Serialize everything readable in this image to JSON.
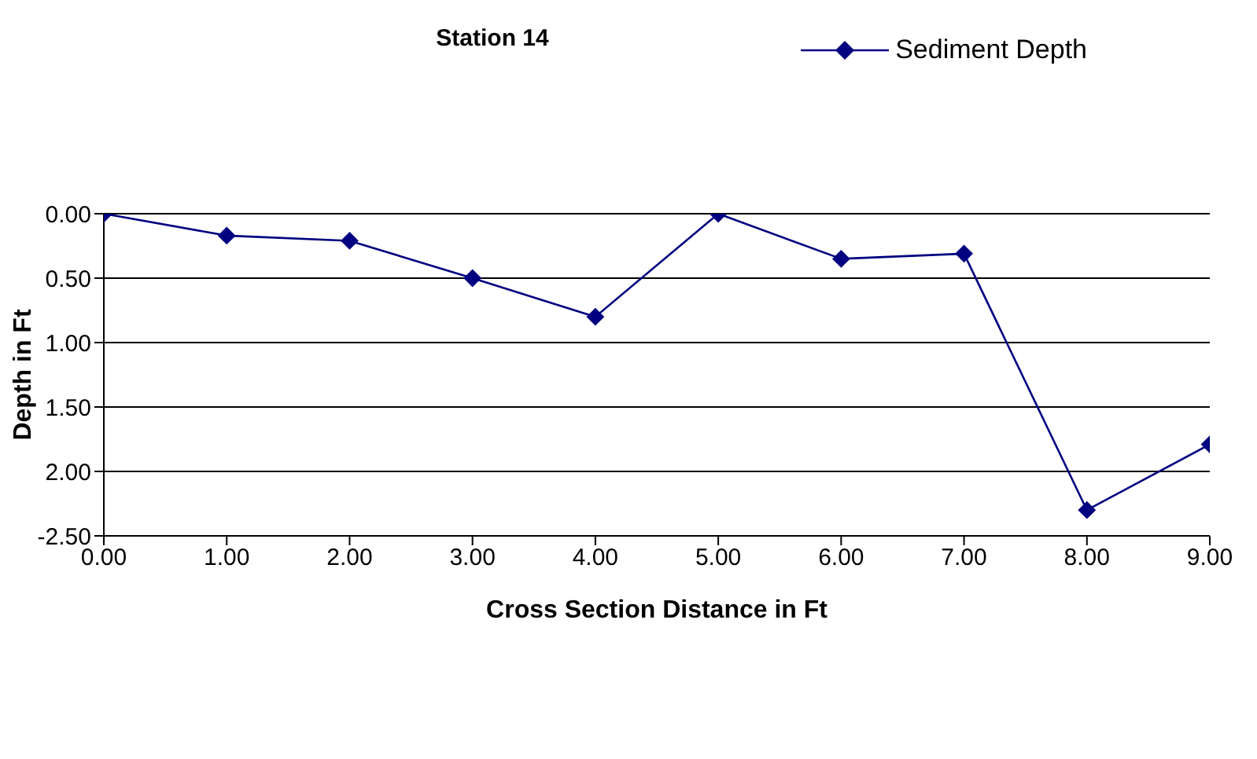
{
  "chart_data": {
    "type": "line",
    "title": "Station 14",
    "xlabel": "Cross Section Distance in Ft",
    "ylabel": "Depth in Ft",
    "x": [
      0,
      1,
      2,
      3,
      4,
      5,
      6,
      7,
      8,
      9
    ],
    "series": [
      {
        "name": "Sediment Depth",
        "color": "#000080",
        "values": [
          0,
          -0.17,
          -0.21,
          -0.5,
          -0.8,
          0,
          -0.35,
          -0.31,
          -2.3,
          -1.79
        ]
      }
    ],
    "xlim": [
      0,
      9
    ],
    "xticks": [
      {
        "value": 0,
        "label": "0.00"
      },
      {
        "value": 1,
        "label": "1.00"
      },
      {
        "value": 2,
        "label": "2.00"
      },
      {
        "value": 3,
        "label": "3.00"
      },
      {
        "value": 4,
        "label": "4.00"
      },
      {
        "value": 5,
        "label": "5.00"
      },
      {
        "value": 6,
        "label": "6.00"
      },
      {
        "value": 7,
        "label": "7.00"
      },
      {
        "value": 8,
        "label": "8.00"
      },
      {
        "value": 9,
        "label": "9.00"
      }
    ],
    "ylim": [
      -2.5,
      0
    ],
    "yticks": [
      {
        "value": 0,
        "label": "0.00"
      },
      {
        "value": -0.5,
        "label": "0.50"
      },
      {
        "value": -1,
        "label": "1.00"
      },
      {
        "value": -1.5,
        "label": "1.50"
      },
      {
        "value": -2,
        "label": "2.00"
      },
      {
        "value": -2.5,
        "label": "-2.50"
      }
    ],
    "grid": "y",
    "legend": "top right",
    "marker": "diamond",
    "line_style": "solid"
  }
}
